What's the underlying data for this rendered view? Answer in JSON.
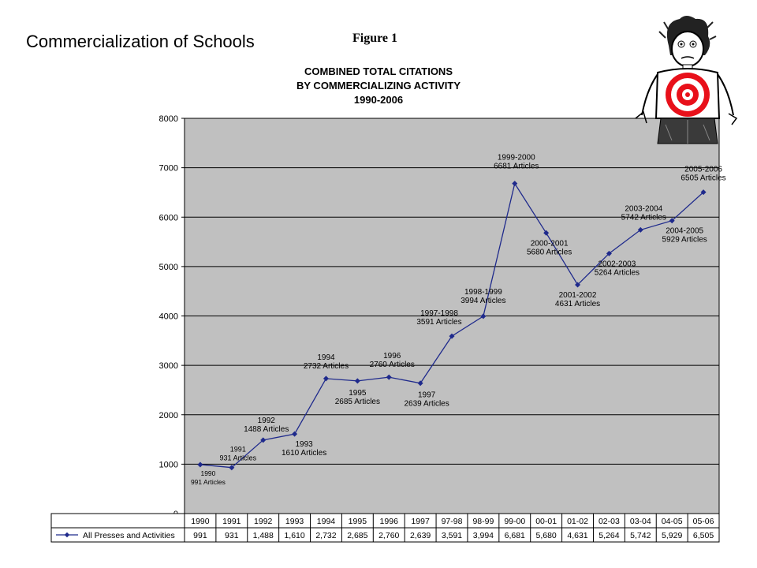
{
  "slide": {
    "title": "Commercialization of Schools",
    "figure_label": "Figure 1"
  },
  "cartoon": {
    "icon": "target-shirt-person-icon"
  },
  "chart_data": {
    "type": "line",
    "title": [
      "COMBINED TOTAL CITATIONS",
      "BY COMMERCIALIZING ACTIVITY",
      "1990-2006"
    ],
    "xlabel": "",
    "ylabel": "",
    "ylim": [
      0,
      8000
    ],
    "yticks": [
      0,
      1000,
      2000,
      3000,
      4000,
      5000,
      6000,
      7000,
      8000
    ],
    "grid": true,
    "plot_background": "#c0c0c0",
    "line_color": "#1f2a8c",
    "categories": [
      "1990",
      "1991",
      "1992",
      "1993",
      "1994",
      "1995",
      "1996",
      "1997",
      "97-98",
      "98-99",
      "99-00",
      "00-01",
      "01-02",
      "02-03",
      "03-04",
      "04-05",
      "05-06"
    ],
    "series": [
      {
        "name": "All Presses and Activities",
        "values": [
          991,
          931,
          1488,
          1610,
          2732,
          2685,
          2760,
          2639,
          3591,
          3994,
          6681,
          5680,
          4631,
          5264,
          5742,
          5929,
          6505
        ],
        "table_values": [
          "991",
          "931",
          "1,488",
          "1,610",
          "2,732",
          "2,685",
          "2,760",
          "2,639",
          "3,591",
          "3,994",
          "6,681",
          "5,680",
          "4,631",
          "5,264",
          "5,742",
          "5,929",
          "6,505"
        ]
      }
    ],
    "annotations": [
      {
        "index": 0,
        "lines": [
          "1990",
          "991 Articles"
        ]
      },
      {
        "index": 1,
        "lines": [
          "1991",
          "931 Articles"
        ]
      },
      {
        "index": 2,
        "lines": [
          "1992",
          "1488 Articles"
        ]
      },
      {
        "index": 3,
        "lines": [
          "1993",
          "1610 Articles"
        ]
      },
      {
        "index": 4,
        "lines": [
          "1994",
          "2732 Articles"
        ]
      },
      {
        "index": 5,
        "lines": [
          "1995",
          "2685 Articles"
        ]
      },
      {
        "index": 6,
        "lines": [
          "1996",
          "2760 Articles"
        ]
      },
      {
        "index": 7,
        "lines": [
          "1997",
          "2639 Articles"
        ]
      },
      {
        "index": 8,
        "lines": [
          "1997-1998",
          "3591 Articles"
        ]
      },
      {
        "index": 9,
        "lines": [
          "1998-1999",
          "3994 Articles"
        ]
      },
      {
        "index": 10,
        "lines": [
          "1999-2000",
          "6681 Articles"
        ]
      },
      {
        "index": 11,
        "lines": [
          "2000-2001",
          "5680 Articles"
        ]
      },
      {
        "index": 12,
        "lines": [
          "2001-2002",
          "4631 Articles"
        ]
      },
      {
        "index": 13,
        "lines": [
          "2002-2003",
          "5264 Articles"
        ]
      },
      {
        "index": 14,
        "lines": [
          "2003-2004",
          "5742 Articles"
        ]
      },
      {
        "index": 15,
        "lines": [
          "2004-2005",
          "5929 Articles"
        ]
      },
      {
        "index": 16,
        "lines": [
          "2005-2006",
          "6505 Articles"
        ]
      }
    ]
  }
}
